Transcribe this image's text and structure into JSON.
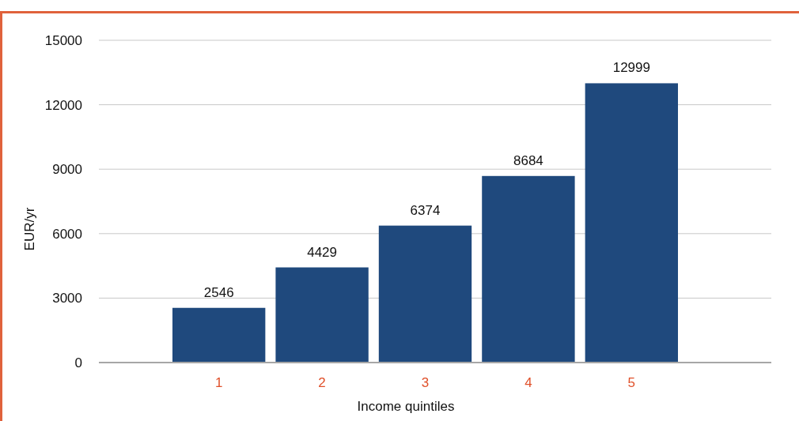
{
  "chart_data": {
    "type": "bar",
    "xlabel": "Income quintiles",
    "ylabel": "EUR/yr",
    "categories": [
      "1",
      "2",
      "3",
      "4",
      "5"
    ],
    "values": [
      2546,
      4429,
      6374,
      8684,
      12999
    ],
    "color": "#1f497d",
    "ylim": [
      0,
      15000
    ],
    "yticks": [
      0,
      3000,
      6000,
      9000,
      12000,
      15000
    ],
    "grid": "y",
    "data_labels": true
  }
}
